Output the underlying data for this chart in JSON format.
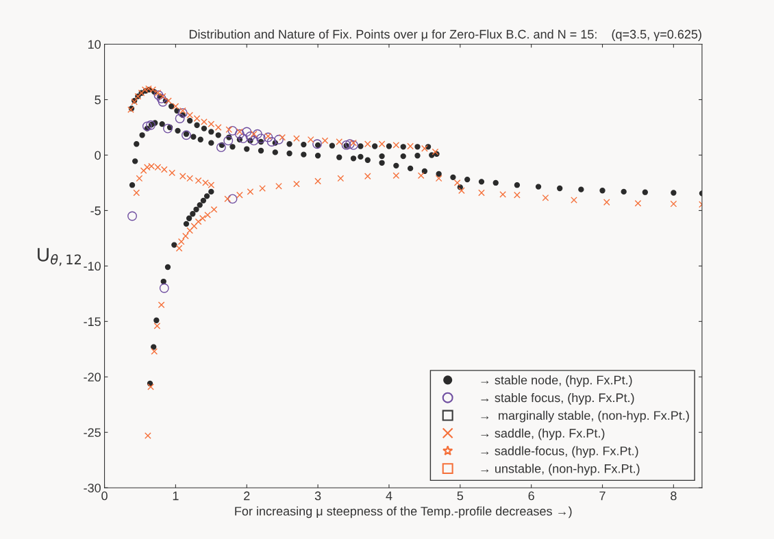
{
  "chart_data": {
    "type": "scatter",
    "title": "Distribution and Nature of Fix. Points over μ for Zero-Flux B.C. and N = 15:    (q=3.5, γ=0.625)",
    "xlabel": "For increasing μ steepness of the Temp.-profile decreases →)",
    "ylabel": "U$_{θ,12}$",
    "xlim": [
      0,
      8.4
    ],
    "xticks": [
      0,
      1,
      2,
      3,
      4,
      5,
      6,
      7,
      8
    ],
    "ylim": [
      -30,
      10
    ],
    "yticks": [
      -30,
      -25,
      -20,
      -15,
      -10,
      -5,
      0,
      5,
      10
    ],
    "grid": false,
    "legend": "bottom right",
    "series": [
      {
        "name": "→ stable node, (hyp. Fx.Pt.)",
        "color": "#2b2b2b",
        "marker": "point",
        "x": [
          0.38,
          0.42,
          0.47,
          0.52,
          0.58,
          0.63,
          0.7,
          0.78,
          0.86,
          0.94,
          1.02,
          1.1,
          1.2,
          1.3,
          1.4,
          1.5,
          1.6,
          1.75,
          1.9,
          2.05,
          2.2,
          2.4,
          2.6,
          2.8,
          3.0,
          3.2,
          3.4,
          3.6,
          3.8,
          4.0,
          4.2,
          4.4,
          4.55,
          0.39,
          0.43,
          0.45,
          0.53,
          0.6,
          0.66,
          0.71,
          0.81,
          0.92,
          1.03,
          1.15,
          1.25,
          1.35,
          1.5,
          1.65,
          1.8,
          2.0,
          2.2,
          2.4,
          2.6,
          2.8,
          3.0,
          3.3,
          3.5,
          3.7,
          3.9,
          4.1,
          4.3,
          4.5,
          4.7,
          4.9,
          5.0,
          5.1,
          5.3,
          5.5,
          5.8,
          6.1,
          6.4,
          6.7,
          7.0,
          7.3,
          7.6,
          8.0,
          8.4,
          3.6,
          3.9,
          4.2,
          4.4,
          4.6,
          4.67,
          0.64,
          0.69,
          0.73,
          0.83,
          0.89,
          0.98,
          1.15,
          1.19,
          1.24,
          1.29,
          1.34,
          1.39,
          1.44,
          1.5
        ],
        "values": [
          4.2,
          4.9,
          5.3,
          5.6,
          5.8,
          5.9,
          5.7,
          5.3,
          4.9,
          4.4,
          4.0,
          3.6,
          3.1,
          2.7,
          2.4,
          2.1,
          1.8,
          1.6,
          1.4,
          1.3,
          1.2,
          1.1,
          1.0,
          0.95,
          0.9,
          0.85,
          0.85,
          0.8,
          0.8,
          0.8,
          0.75,
          0.75,
          0.75,
          -2.7,
          -0.55,
          1.0,
          1.8,
          2.4,
          2.75,
          2.9,
          2.8,
          2.5,
          2.2,
          1.9,
          1.65,
          1.4,
          1.1,
          0.9,
          0.75,
          0.55,
          0.4,
          0.25,
          0.15,
          0.05,
          -0.05,
          -0.2,
          -0.3,
          -0.45,
          -0.7,
          -0.95,
          -1.2,
          -1.45,
          -1.7,
          -2.0,
          -2.9,
          -2.2,
          -2.4,
          -2.5,
          -2.7,
          -2.85,
          -3.0,
          -3.1,
          -3.2,
          -3.3,
          -3.35,
          -3.4,
          -3.45,
          -0.15,
          -0.1,
          -0.1,
          -0.05,
          0.0,
          0.1,
          -20.6,
          -17.3,
          -14.9,
          -11.4,
          -10.1,
          -8.1,
          -6.2,
          -5.7,
          -5.3,
          -4.9,
          -4.5,
          -4.1,
          -3.7,
          -3.3
        ]
      },
      {
        "name": "→ stable focus, (hyp. Fx.Pt.)",
        "color": "#6f4ea0",
        "marker": "circle",
        "x": [
          0.39,
          0.84,
          1.8,
          0.6,
          0.65,
          0.89,
          1.15,
          1.64,
          0.76,
          0.8,
          0.82,
          1.06,
          1.1,
          1.74,
          1.8,
          1.9,
          1.95,
          2.0,
          2.05,
          2.1,
          2.15,
          2.2,
          2.3,
          2.35,
          2.45,
          2.99,
          3.4,
          3.5,
          3.45
        ],
        "values": [
          -5.5,
          -12.0,
          -3.95,
          2.6,
          2.7,
          2.4,
          1.8,
          0.7,
          5.4,
          5.1,
          4.8,
          3.3,
          3.8,
          1.3,
          2.2,
          1.9,
          1.5,
          2.1,
          1.7,
          1.3,
          1.9,
          1.5,
          1.6,
          1.2,
          1.4,
          1.0,
          0.9,
          0.9,
          1.0
        ]
      },
      {
        "name": "→  marginally stable, (non-hyp. Fx.Pt.)",
        "color": "#3a3a3a",
        "marker": "square"
      },
      {
        "name": "→ saddle, (hyp. Fx.Pt.)",
        "color": "#f5703a",
        "marker": "cross",
        "x": [
          0.37,
          0.42,
          0.47,
          0.52,
          0.57,
          0.62,
          0.68,
          0.75,
          0.82,
          0.9,
          1.0,
          1.1,
          1.2,
          1.3,
          1.4,
          1.5,
          1.6,
          1.75,
          1.9,
          2.1,
          2.3,
          2.5,
          2.7,
          2.9,
          3.1,
          3.3,
          3.5,
          3.7,
          3.9,
          4.1,
          4.3,
          4.5,
          4.65,
          0.45,
          0.49,
          0.55,
          0.6,
          0.66,
          0.75,
          0.84,
          0.95,
          1.1,
          1.2,
          1.32,
          1.42,
          1.5,
          0.61,
          0.65,
          0.7,
          0.74,
          0.8,
          1.05,
          1.08,
          1.14,
          1.2,
          1.26,
          1.32,
          1.38,
          1.45,
          1.54,
          1.73,
          1.9,
          2.05,
          2.22,
          2.45,
          2.7,
          3.0,
          3.32,
          3.7,
          4.1,
          4.45,
          4.7,
          4.96,
          5.02,
          5.3,
          5.6,
          5.8,
          6.2,
          6.6,
          7.06,
          7.5,
          8.0,
          8.4
        ],
        "values": [
          4.1,
          4.8,
          5.3,
          5.6,
          5.9,
          6.0,
          5.9,
          5.6,
          5.3,
          4.9,
          4.4,
          4.0,
          3.6,
          3.3,
          3.0,
          2.8,
          2.5,
          2.3,
          2.1,
          1.9,
          1.7,
          1.6,
          1.5,
          1.4,
          1.3,
          1.2,
          1.1,
          1.0,
          1.0,
          0.9,
          0.8,
          0.6,
          0.3,
          -3.4,
          -2.1,
          -1.4,
          -1.1,
          -1.0,
          -1.1,
          -1.3,
          -1.6,
          -1.9,
          -2.1,
          -2.3,
          -2.5,
          -2.7,
          -25.3,
          -20.9,
          -17.7,
          -15.4,
          -13.5,
          -8.4,
          -7.8,
          -7.3,
          -6.8,
          -6.4,
          -6.0,
          -5.7,
          -5.4,
          -4.9,
          -3.95,
          -3.6,
          -3.3,
          -3.0,
          -2.8,
          -2.6,
          -2.35,
          -2.1,
          -1.9,
          -1.85,
          -1.85,
          -2.1,
          -2.5,
          -3.2,
          -3.4,
          -3.55,
          -3.6,
          -3.85,
          -4.05,
          -4.25,
          -4.35,
          -4.4,
          -4.45
        ]
      },
      {
        "name": "→ saddle-focus, (hyp. Fx.Pt.)",
        "color": "#f5703a",
        "marker": "star"
      },
      {
        "name": "→ unstable, (non-hyp. Fx.Pt.)",
        "color": "#f5703a",
        "marker": "square"
      }
    ]
  }
}
